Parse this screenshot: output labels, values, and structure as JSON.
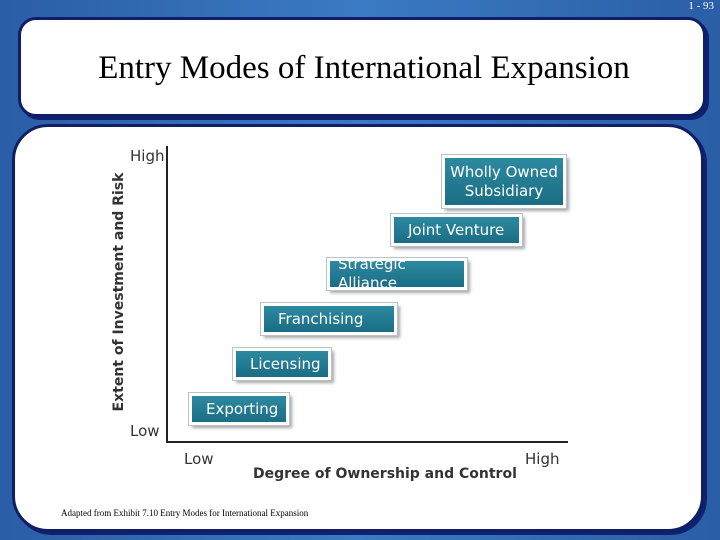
{
  "slide_number": "1 - 93",
  "title": "Entry Modes of International Expansion",
  "y_axis": {
    "label": "Extent of Investment and Risk",
    "high": "High",
    "low": "Low"
  },
  "x_axis": {
    "label": "Degree of Ownership and Control",
    "low": "Low",
    "high": "High"
  },
  "modes": [
    {
      "label": "Exporting"
    },
    {
      "label": "Licensing"
    },
    {
      "label": "Franchising"
    },
    {
      "label": "Strategic Alliance"
    },
    {
      "label": "Joint Venture"
    },
    {
      "label": "Wholly Owned Subsidiary"
    }
  ],
  "footnote": "Adapted from Exhibit 7.10 Entry Modes for International Expansion",
  "colors": {
    "background": "#2a5ea6",
    "box_fill": "#1f7890",
    "border": "#0f1e66"
  }
}
